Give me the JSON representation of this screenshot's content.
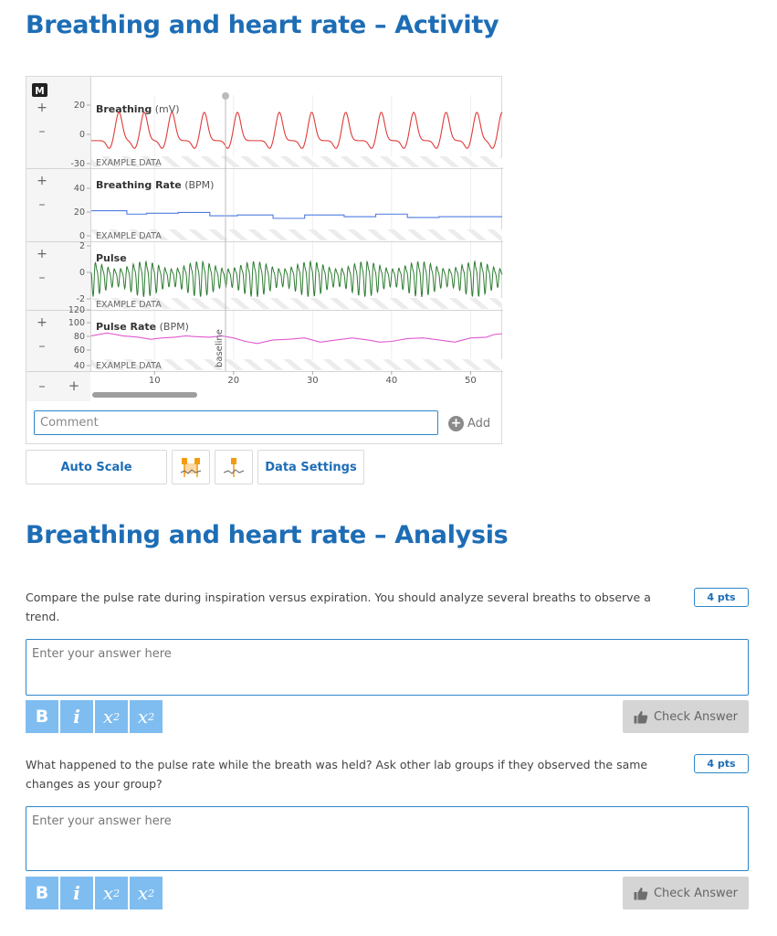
{
  "page": {
    "activity_title": "Breathing and heart rate – Activity",
    "analysis_title": "Breathing and heart rate – Analysis"
  },
  "graph": {
    "marker_label": "M",
    "plus": "+",
    "minus": "–",
    "example_label": "EXAMPLE DATA",
    "baseline_label": "baseline",
    "comment_placeholder": "Comment",
    "add_label": "Add",
    "add_icon": "+",
    "colors": {
      "breathing": "#e03a3a",
      "breathing_rate": "#4f7be0",
      "pulse": "#2e7d32",
      "pulse_rate": "#e05ad0",
      "accent": "#2d86c9",
      "marker": "#f39c12"
    },
    "panels": [
      {
        "title": "Breathing",
        "unit": "(mV)",
        "ticks": [
          "20",
          "0",
          "-30"
        ]
      },
      {
        "title": "Breathing Rate",
        "unit": "(BPM)",
        "ticks": [
          "40",
          "20",
          "0"
        ]
      },
      {
        "title": "Pulse",
        "unit": "",
        "ticks": [
          "2",
          "0",
          "-2"
        ]
      },
      {
        "title": "Pulse Rate",
        "unit": "(BPM)",
        "ticks": [
          "120",
          "100",
          "80",
          "60",
          "40"
        ]
      }
    ],
    "x_ticks": [
      "10",
      "20",
      "30",
      "40",
      "50"
    ]
  },
  "chart_data": [
    {
      "type": "line",
      "title": "Breathing",
      "ylabel": "(mV)",
      "xlim": [
        2,
        54
      ],
      "ylim": [
        -30,
        20
      ],
      "series": [
        {
          "peaks_at_x": [
            5.5,
            8.7,
            12.2,
            16.3,
            20.5,
            25.8,
            29.9,
            34.2,
            38.7,
            42.8,
            46.9,
            50.8,
            54
          ],
          "peak_value": 10,
          "trough_value": -20
        }
      ]
    },
    {
      "type": "line",
      "title": "Breathing Rate",
      "ylabel": "(BPM)",
      "xlim": [
        2,
        54
      ],
      "ylim": [
        0,
        40
      ],
      "series": [
        {
          "x": [
            2,
            6.5,
            6.5,
            9,
            9,
            13,
            13,
            17,
            17,
            20.5,
            20.5,
            25,
            25,
            29,
            29,
            34,
            34,
            38,
            38,
            42,
            42,
            46,
            46,
            54
          ],
          "y": [
            17,
            17,
            15,
            15,
            15.5,
            15.5,
            16,
            16,
            14,
            14,
            14.5,
            14.5,
            12.5,
            12.5,
            14.5,
            14.5,
            13.5,
            13.5,
            15,
            15,
            13,
            13,
            13.5,
            13.5
          ]
        }
      ]
    },
    {
      "type": "line",
      "title": "Pulse",
      "xlim": [
        2,
        54
      ],
      "ylim": [
        -2,
        2
      ],
      "series": [
        {
          "cycles_per_unit_x": 1.25,
          "amplitude": 1
        }
      ]
    },
    {
      "type": "line",
      "title": "Pulse Rate",
      "ylabel": "(BPM)",
      "xlim": [
        2,
        54
      ],
      "ylim": [
        40,
        120
      ],
      "series": [
        {
          "x": [
            2,
            4,
            6,
            8,
            9.5,
            11,
            12.5,
            14,
            15,
            17,
            18.5,
            20,
            21.5,
            23,
            25,
            27,
            29,
            31,
            33,
            35,
            37,
            38.5,
            40,
            42,
            44,
            46,
            48,
            50,
            52,
            53,
            54
          ],
          "y": [
            88,
            92,
            88,
            86,
            83,
            85,
            86,
            88,
            87,
            86,
            88,
            85,
            80,
            77,
            82,
            83,
            85,
            79,
            82,
            85,
            82,
            79,
            80,
            84,
            85,
            82,
            79,
            85,
            86,
            90,
            91
          ]
        }
      ]
    }
  ],
  "toolbar": {
    "autoscale_label": "Auto Scale",
    "data_settings_label": "Data Settings",
    "region_icon": "region-marker-icon",
    "marker_icon": "single-marker-icon"
  },
  "questions": [
    {
      "text": "Compare the pulse rate during inspiration versus expiration.  You should analyze several breaths to observe a trend.",
      "points": "4 pts",
      "placeholder": "Enter your answer here",
      "check_label": "Check Answer"
    },
    {
      "text": "What happened to the pulse rate while the breath was held? Ask other lab groups if they observed the same changes as your group?",
      "points": "4 pts",
      "placeholder": "Enter your answer here",
      "check_label": "Check Answer"
    }
  ],
  "format_buttons": {
    "bold": "B",
    "italic": "i",
    "subscript": "x",
    "sub_mark": "2",
    "superscript": "x",
    "sup_mark": "2"
  }
}
